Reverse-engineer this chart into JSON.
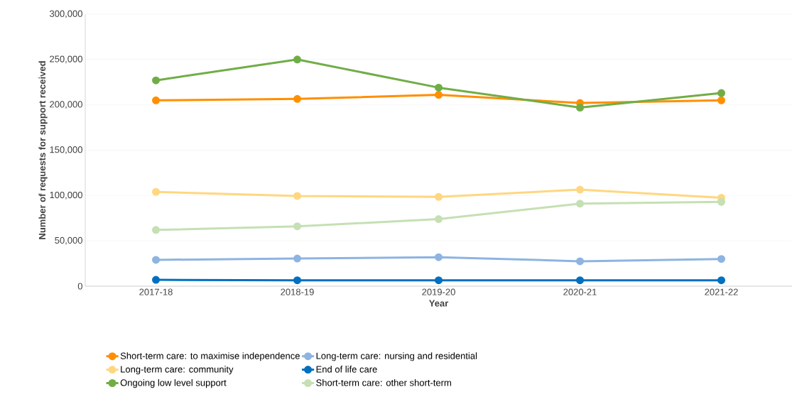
{
  "chart_data": {
    "type": "line",
    "xlabel": "Year",
    "ylabel": "Number of requests for support received",
    "categories": [
      "2017-18",
      "2018-19",
      "2019-20",
      "2020-21",
      "2021-22"
    ],
    "series": [
      {
        "name": "Short-term care: to maximise independence",
        "color": "#ff8f00",
        "values": [
          205000,
          206500,
          211000,
          202000,
          205000
        ]
      },
      {
        "name": "Long-term care: nursing and residential",
        "color": "#8db4e2",
        "values": [
          29000,
          30500,
          32000,
          27500,
          30000
        ]
      },
      {
        "name": "Long-term care: community",
        "color": "#ffd780",
        "values": [
          104000,
          99500,
          98500,
          106500,
          97500
        ]
      },
      {
        "name": "End of life care",
        "color": "#0070c0",
        "values": [
          7000,
          6500,
          6500,
          6500,
          6500
        ]
      },
      {
        "name": "Ongoing low level support",
        "color": "#70ad47",
        "values": [
          227000,
          250000,
          219000,
          197000,
          213000
        ]
      },
      {
        "name": "Short-term care: other short-term",
        "color": "#c5e0b4",
        "values": [
          62000,
          66000,
          74000,
          91000,
          93000
        ]
      }
    ],
    "ylim": [
      0,
      300000
    ],
    "yticks": [
      {
        "value": 0,
        "label": "0"
      },
      {
        "value": 50000,
        "label": "50,000"
      },
      {
        "value": 100000,
        "label": "100,000"
      },
      {
        "value": 150000,
        "label": "150,000"
      },
      {
        "value": 200000,
        "label": "200,000"
      },
      {
        "value": 250000,
        "label": "250,000"
      },
      {
        "value": 300000,
        "label": "300,000"
      }
    ],
    "grid": "y",
    "legend": "bottom",
    "marker": "circle",
    "line_style": "solid"
  }
}
